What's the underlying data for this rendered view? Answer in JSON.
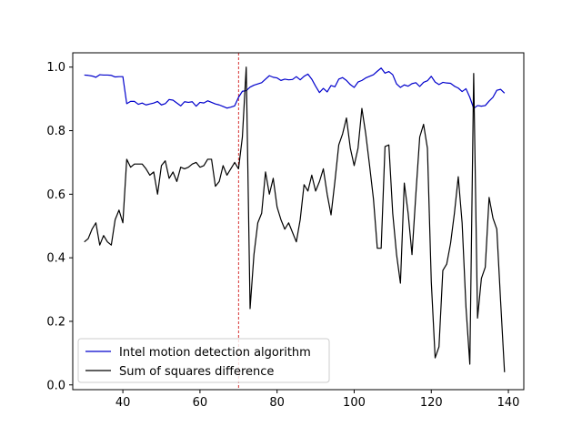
{
  "chart_data": {
    "type": "line",
    "xlim": [
      27,
      144
    ],
    "ylim": [
      -0.015,
      1.045
    ],
    "x_ticks": [
      40,
      60,
      80,
      100,
      120,
      140
    ],
    "y_ticks": [
      0.0,
      0.2,
      0.4,
      0.6,
      0.8,
      1.0
    ],
    "x_tick_labels": [
      "40",
      "60",
      "80",
      "100",
      "120",
      "140"
    ],
    "y_tick_labels": [
      "0.0",
      "0.2",
      "0.4",
      "0.6",
      "0.8",
      "1.0"
    ],
    "grid": false,
    "legend_position": "lower-left",
    "vline": {
      "x": 70,
      "color": "#cc0000",
      "style": "dashed"
    },
    "series": [
      {
        "name": "Intel motion detection algorithm",
        "color": "#0000cc",
        "x": [
          30,
          31,
          32,
          33,
          34,
          35,
          36,
          37,
          38,
          39,
          40,
          41,
          42,
          43,
          44,
          45,
          46,
          47,
          48,
          49,
          50,
          51,
          52,
          53,
          54,
          55,
          56,
          57,
          58,
          59,
          60,
          61,
          62,
          63,
          64,
          65,
          66,
          67,
          68,
          69,
          70,
          71,
          72,
          73,
          74,
          75,
          76,
          77,
          78,
          79,
          80,
          81,
          82,
          83,
          84,
          85,
          86,
          87,
          88,
          89,
          90,
          91,
          92,
          93,
          94,
          95,
          96,
          97,
          98,
          99,
          100,
          101,
          102,
          103,
          104,
          105,
          106,
          107,
          108,
          109,
          110,
          111,
          112,
          113,
          114,
          115,
          116,
          117,
          118,
          119,
          120,
          121,
          122,
          123,
          124,
          125,
          126,
          127,
          128,
          129,
          130,
          131,
          132,
          133,
          134,
          135,
          136,
          137,
          138,
          139
        ],
        "values": [
          0.975,
          0.974,
          0.972,
          0.968,
          0.976,
          0.975,
          0.975,
          0.974,
          0.969,
          0.97,
          0.97,
          0.885,
          0.892,
          0.892,
          0.883,
          0.887,
          0.881,
          0.884,
          0.887,
          0.892,
          0.881,
          0.885,
          0.898,
          0.896,
          0.887,
          0.878,
          0.891,
          0.889,
          0.891,
          0.877,
          0.889,
          0.887,
          0.894,
          0.889,
          0.884,
          0.881,
          0.876,
          0.871,
          0.874,
          0.878,
          0.905,
          0.924,
          0.926,
          0.937,
          0.943,
          0.947,
          0.951,
          0.962,
          0.973,
          0.968,
          0.966,
          0.958,
          0.962,
          0.96,
          0.961,
          0.97,
          0.96,
          0.971,
          0.978,
          0.962,
          0.94,
          0.92,
          0.933,
          0.922,
          0.942,
          0.938,
          0.962,
          0.967,
          0.958,
          0.945,
          0.936,
          0.953,
          0.958,
          0.966,
          0.971,
          0.976,
          0.987,
          0.997,
          0.981,
          0.986,
          0.976,
          0.947,
          0.936,
          0.944,
          0.94,
          0.948,
          0.951,
          0.939,
          0.952,
          0.957,
          0.971,
          0.953,
          0.945,
          0.952,
          0.95,
          0.949,
          0.94,
          0.934,
          0.923,
          0.932,
          0.905,
          0.87,
          0.879,
          0.877,
          0.879,
          0.893,
          0.905,
          0.927,
          0.93,
          0.918
        ]
      },
      {
        "name": "Sum of squares difference",
        "color": "#000000",
        "x": [
          30,
          31,
          32,
          33,
          34,
          35,
          36,
          37,
          38,
          39,
          40,
          41,
          42,
          43,
          44,
          45,
          46,
          47,
          48,
          49,
          50,
          51,
          52,
          53,
          54,
          55,
          56,
          57,
          58,
          59,
          60,
          61,
          62,
          63,
          64,
          65,
          66,
          67,
          68,
          69,
          70,
          71,
          72,
          73,
          74,
          75,
          76,
          77,
          78,
          79,
          80,
          81,
          82,
          83,
          84,
          85,
          86,
          87,
          88,
          89,
          90,
          91,
          92,
          93,
          94,
          95,
          96,
          97,
          98,
          99,
          100,
          101,
          102,
          103,
          104,
          105,
          106,
          107,
          108,
          109,
          110,
          111,
          112,
          113,
          114,
          115,
          116,
          117,
          118,
          119,
          120,
          121,
          122,
          123,
          124,
          125,
          126,
          127,
          128,
          129,
          130,
          131,
          132,
          133,
          134,
          135,
          136,
          137,
          138,
          139
        ],
        "values": [
          0.45,
          0.46,
          0.49,
          0.51,
          0.44,
          0.47,
          0.45,
          0.44,
          0.52,
          0.55,
          0.51,
          0.71,
          0.685,
          0.695,
          0.695,
          0.695,
          0.68,
          0.66,
          0.67,
          0.6,
          0.69,
          0.705,
          0.65,
          0.67,
          0.64,
          0.685,
          0.68,
          0.685,
          0.695,
          0.7,
          0.685,
          0.69,
          0.71,
          0.71,
          0.625,
          0.64,
          0.69,
          0.66,
          0.68,
          0.7,
          0.68,
          0.78,
          1.0,
          0.24,
          0.41,
          0.51,
          0.54,
          0.67,
          0.6,
          0.65,
          0.56,
          0.52,
          0.49,
          0.51,
          0.48,
          0.45,
          0.52,
          0.63,
          0.61,
          0.66,
          0.61,
          0.64,
          0.68,
          0.6,
          0.535,
          0.64,
          0.755,
          0.79,
          0.84,
          0.745,
          0.69,
          0.745,
          0.87,
          0.79,
          0.69,
          0.585,
          0.43,
          0.43,
          0.75,
          0.755,
          0.54,
          0.41,
          0.32,
          0.635,
          0.54,
          0.41,
          0.6,
          0.78,
          0.82,
          0.745,
          0.325,
          0.085,
          0.12,
          0.36,
          0.38,
          0.445,
          0.54,
          0.655,
          0.51,
          0.245,
          0.065,
          0.98,
          0.21,
          0.335,
          0.37,
          0.59,
          0.525,
          0.49,
          0.26,
          0.04
        ]
      }
    ]
  }
}
